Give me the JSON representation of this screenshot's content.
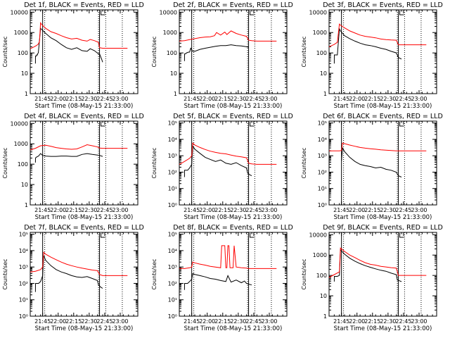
{
  "colors": {
    "events": "#000000",
    "lld": "#ff0000",
    "frame": "#000000",
    "background": "#ffffff"
  },
  "common": {
    "ylabel": "Counts/sec",
    "xlabel": "Start Time (08-May-15 21:33:00)",
    "x_tick_labels": [
      "21:45",
      "22:00",
      "22:15",
      "22:30",
      "22:45",
      "23:00"
    ],
    "x_tick_minutes": [
      12,
      27,
      42,
      57,
      72,
      87
    ],
    "xlim_minutes": [
      0,
      104
    ],
    "vlines_solid_minutes": [
      12,
      67
    ],
    "vlines_dotted_minutes": [
      14,
      66,
      73,
      89
    ]
  },
  "chart_data": [
    {
      "type": "line",
      "title": "Det 1f, BLACK = Events, RED = LLD",
      "yscale": "log",
      "ylim": [
        1,
        13000
      ],
      "ytick_values": [
        1,
        10,
        100,
        1000,
        10000
      ],
      "ytick_labels": [
        "1",
        "10",
        "100",
        "1000",
        "10000"
      ],
      "series": [
        {
          "name": "Events",
          "color": "#000000",
          "x": [
            5,
            5.1,
            6,
            6.1,
            7,
            7.1,
            7.8,
            10,
            15,
            20,
            25,
            30,
            35,
            40,
            45,
            50,
            55,
            58,
            62,
            66,
            67,
            69,
            70
          ],
          "y": [
            30,
            70,
            70,
            80,
            80,
            90,
            100,
            1600,
            900,
            550,
            400,
            260,
            180,
            150,
            180,
            130,
            120,
            160,
            130,
            90,
            90,
            50,
            35
          ]
        },
        {
          "name": "LLD",
          "color": "#ff0000",
          "x": [
            0,
            3,
            6,
            8,
            9,
            10,
            11,
            15,
            20,
            25,
            30,
            35,
            40,
            45,
            50,
            55,
            58,
            62,
            66,
            67,
            70,
            75,
            80,
            85,
            90,
            94
          ],
          "y": [
            160,
            190,
            230,
            280,
            380,
            3000,
            2500,
            1600,
            1100,
            900,
            700,
            560,
            480,
            520,
            420,
            380,
            460,
            400,
            330,
            180,
            170,
            170,
            170,
            170,
            170,
            170
          ]
        }
      ]
    },
    {
      "type": "line",
      "title": "Det 2f, BLACK = Events, RED = LLD",
      "yscale": "log",
      "ylim": [
        1,
        13000
      ],
      "ytick_values": [
        1,
        10,
        100,
        1000,
        10000
      ],
      "ytick_labels": [
        "1",
        "10",
        "100",
        "1000",
        "10000"
      ],
      "series": [
        {
          "name": "Events",
          "color": "#000000",
          "x": [
            5,
            5.1,
            6,
            7,
            9,
            10,
            11,
            13,
            15,
            20,
            25,
            30,
            35,
            40,
            45,
            50,
            55,
            60,
            65,
            67
          ],
          "y": [
            40,
            90,
            90,
            100,
            110,
            110,
            170,
            120,
            120,
            150,
            170,
            190,
            210,
            230,
            230,
            250,
            230,
            220,
            200,
            190
          ]
        },
        {
          "name": "LLD",
          "color": "#ff0000",
          "x": [
            0,
            5,
            10,
            15,
            20,
            25,
            30,
            34,
            36,
            40,
            44,
            46,
            50,
            55,
            60,
            65,
            67,
            70,
            75,
            80,
            85,
            90,
            94
          ],
          "y": [
            380,
            400,
            450,
            500,
            560,
            600,
            620,
            700,
            1000,
            750,
            1050,
            800,
            1200,
            900,
            750,
            650,
            420,
            400,
            380,
            380,
            380,
            380,
            380
          ]
        }
      ]
    },
    {
      "type": "line",
      "title": "Det 3f, BLACK = Events, RED = LLD",
      "yscale": "log",
      "ylim": [
        1,
        13000
      ],
      "ytick_values": [
        1,
        10,
        100,
        1000,
        10000
      ],
      "ytick_labels": [
        "1",
        "10",
        "100",
        "1000",
        "10000"
      ],
      "series": [
        {
          "name": "Events",
          "color": "#000000",
          "x": [
            5,
            5.1,
            6.5,
            8,
            10,
            11,
            15,
            20,
            25,
            30,
            35,
            40,
            45,
            50,
            55,
            60,
            65,
            67,
            70
          ],
          "y": [
            30,
            80,
            80,
            80,
            1500,
            1200,
            700,
            500,
            380,
            300,
            250,
            230,
            200,
            170,
            150,
            120,
            100,
            60,
            50
          ]
        },
        {
          "name": "LLD",
          "color": "#ff0000",
          "x": [
            0,
            5,
            8,
            10,
            11,
            15,
            20,
            25,
            30,
            35,
            40,
            45,
            50,
            55,
            60,
            65,
            67,
            70,
            75,
            80,
            85,
            90,
            94
          ],
          "y": [
            200,
            260,
            330,
            2600,
            2300,
            1700,
            1200,
            950,
            750,
            650,
            600,
            550,
            480,
            450,
            430,
            420,
            250,
            250,
            250,
            250,
            250,
            250,
            250
          ]
        }
      ]
    },
    {
      "type": "line",
      "title": "Det 4f, BLACK = Events, RED = LLD",
      "yscale": "log",
      "ylim": [
        1,
        13000
      ],
      "ytick_values": [
        1,
        10,
        100,
        1000,
        10000
      ],
      "ytick_labels": [
        "1",
        "10",
        "100",
        "1000",
        "10000"
      ],
      "series": [
        {
          "name": "Events",
          "color": "#000000",
          "x": [
            5,
            5.1,
            6,
            8,
            10,
            12,
            15,
            20,
            25,
            30,
            35,
            40,
            45,
            50,
            55,
            60,
            65,
            67,
            70
          ],
          "y": [
            120,
            200,
            220,
            250,
            330,
            270,
            250,
            240,
            240,
            250,
            250,
            240,
            240,
            300,
            330,
            300,
            280,
            270,
            240
          ]
        },
        {
          "name": "LLD",
          "color": "#ff0000",
          "x": [
            0,
            5,
            10,
            15,
            20,
            25,
            30,
            35,
            40,
            45,
            50,
            55,
            60,
            65,
            67,
            70,
            75,
            80,
            85,
            90,
            94
          ],
          "y": [
            500,
            600,
            800,
            850,
            750,
            650,
            600,
            560,
            540,
            560,
            700,
            900,
            800,
            700,
            620,
            600,
            600,
            600,
            600,
            600,
            600
          ]
        }
      ]
    },
    {
      "type": "line",
      "title": "Det 5f, BLACK = Events, RED = LLD",
      "yscale": "log",
      "ylim": [
        1,
        130000
      ],
      "ytick_values": [
        1,
        10,
        100,
        1000,
        10000,
        100000
      ],
      "ytick_labels": [
        "10⁰",
        "10¹",
        "10²",
        "10³",
        "10⁴",
        "10⁵"
      ],
      "series": [
        {
          "name": "Events",
          "color": "#000000",
          "x": [
            5,
            5.1,
            8,
            10,
            12,
            13,
            15,
            20,
            25,
            30,
            35,
            40,
            45,
            50,
            55,
            60,
            65,
            66,
            68,
            70
          ],
          "y": [
            50,
            130,
            130,
            180,
            300,
            4000,
            2500,
            1400,
            800,
            600,
            450,
            550,
            350,
            300,
            380,
            250,
            180,
            90,
            70,
            60
          ]
        },
        {
          "name": "LLD",
          "color": "#ff0000",
          "x": [
            0,
            5,
            10,
            12,
            13,
            15,
            20,
            25,
            30,
            35,
            40,
            45,
            50,
            55,
            60,
            65,
            67,
            70,
            75,
            80,
            85,
            90,
            94
          ],
          "y": [
            300,
            450,
            700,
            1000,
            6000,
            4500,
            3200,
            2400,
            1900,
            1600,
            1400,
            1300,
            1100,
            950,
            850,
            750,
            350,
            320,
            300,
            300,
            300,
            300,
            300
          ]
        }
      ]
    },
    {
      "type": "line",
      "title": "Det 6f, BLACK = Events, RED = LLD",
      "yscale": "log",
      "ylim": [
        1,
        130000
      ],
      "ytick_values": [
        1,
        10,
        100,
        1000,
        10000,
        100000
      ],
      "ytick_labels": [
        "10⁰",
        "10¹",
        "10²",
        "10³",
        "10⁴",
        "10⁵"
      ],
      "series": [
        {
          "name": "Events",
          "color": "#000000",
          "x": [
            12,
            13,
            15,
            20,
            25,
            30,
            35,
            40,
            45,
            50,
            55,
            60,
            65,
            67,
            70
          ],
          "y": [
            500,
            3000,
            1800,
            800,
            450,
            300,
            250,
            220,
            180,
            200,
            150,
            130,
            100,
            60,
            50
          ]
        },
        {
          "name": "LLD",
          "color": "#ff0000",
          "x": [
            0,
            5,
            10,
            12,
            13,
            15,
            20,
            25,
            30,
            35,
            40,
            45,
            50,
            55,
            60,
            65,
            67,
            70,
            75,
            80,
            85,
            90,
            94
          ],
          "y": [
            2000,
            2000,
            2000,
            2100,
            6000,
            5500,
            4500,
            3800,
            3200,
            2900,
            2700,
            2500,
            2300,
            2200,
            2100,
            2000,
            2000,
            2000,
            2000,
            2000,
            2000,
            2000,
            2000
          ]
        }
      ]
    },
    {
      "type": "line",
      "title": "Det 7f, BLACK = Events, RED = LLD",
      "yscale": "log",
      "ylim": [
        1,
        130000
      ],
      "ytick_values": [
        1,
        10,
        100,
        1000,
        10000,
        100000
      ],
      "ytick_labels": [
        "10⁰",
        "10¹",
        "10²",
        "10³",
        "10⁴",
        "10⁵"
      ],
      "series": [
        {
          "name": "Events",
          "color": "#000000",
          "x": [
            5,
            5.1,
            8,
            10,
            12,
            13,
            15,
            20,
            25,
            30,
            35,
            40,
            45,
            50,
            55,
            60,
            65,
            66,
            68,
            70
          ],
          "y": [
            30,
            100,
            100,
            130,
            300,
            5000,
            2500,
            1200,
            700,
            500,
            400,
            300,
            250,
            230,
            260,
            200,
            150,
            80,
            60,
            50
          ]
        },
        {
          "name": "LLD",
          "color": "#ff0000",
          "x": [
            0,
            5,
            10,
            12,
            13,
            15,
            20,
            25,
            30,
            35,
            40,
            45,
            50,
            55,
            60,
            65,
            67,
            70,
            75,
            80,
            85,
            90,
            94
          ],
          "y": [
            500,
            550,
            700,
            1000,
            8000,
            6000,
            4000,
            2800,
            2000,
            1500,
            1200,
            1000,
            850,
            750,
            650,
            600,
            350,
            300,
            300,
            300,
            300,
            300,
            300
          ]
        }
      ]
    },
    {
      "type": "line",
      "title": "Det 8f, BLACK = Events, RED = LLD",
      "yscale": "log",
      "ylim": [
        1,
        130000
      ],
      "ytick_values": [
        1,
        10,
        100,
        1000,
        10000,
        100000
      ],
      "ytick_labels": [
        "10⁰",
        "10¹",
        "10²",
        "10³",
        "10⁴",
        "10⁵"
      ],
      "series": [
        {
          "name": "Events",
          "color": "#000000",
          "x": [
            5,
            5.1,
            8,
            10,
            12,
            13,
            15,
            20,
            25,
            30,
            35,
            40,
            45,
            47,
            50,
            55,
            60,
            63,
            65,
            67,
            70
          ],
          "y": [
            40,
            100,
            100,
            130,
            180,
            400,
            350,
            300,
            250,
            200,
            180,
            150,
            130,
            300,
            120,
            160,
            110,
            140,
            100,
            90,
            80
          ]
        },
        {
          "name": "LLD",
          "color": "#ff0000",
          "x": [
            0,
            5,
            10,
            12,
            13,
            15,
            20,
            25,
            30,
            40,
            41,
            44,
            45,
            46,
            47,
            48,
            49,
            52,
            53,
            55,
            60,
            65,
            67,
            70,
            75,
            80,
            85,
            90,
            94
          ],
          "y": [
            800,
            800,
            900,
            1000,
            2000,
            1800,
            1500,
            1300,
            1100,
            900,
            20000,
            20000,
            900,
            900,
            20000,
            20000,
            900,
            900,
            20000,
            1000,
            900,
            850,
            800,
            800,
            800,
            800,
            800,
            800,
            800
          ]
        }
      ]
    },
    {
      "type": "line",
      "title": "Det 9f, BLACK = Events, RED = LLD",
      "yscale": "log",
      "ylim": [
        1,
        13000
      ],
      "ytick_values": [
        1,
        10,
        100,
        1000,
        10000
      ],
      "ytick_labels": [
        "1",
        "10",
        "100",
        "1000",
        "10000"
      ],
      "series": [
        {
          "name": "Events",
          "color": "#000000",
          "x": [
            5,
            5.1,
            8,
            10,
            11,
            15,
            20,
            25,
            30,
            35,
            40,
            45,
            50,
            55,
            60,
            65,
            66,
            68,
            70
          ],
          "y": [
            50,
            90,
            90,
            100,
            1800,
            1100,
            700,
            500,
            380,
            300,
            250,
            210,
            180,
            160,
            130,
            110,
            60,
            55,
            50
          ]
        },
        {
          "name": "LLD",
          "color": "#ff0000",
          "x": [
            0,
            5,
            10,
            11,
            15,
            20,
            25,
            30,
            35,
            40,
            45,
            50,
            55,
            60,
            65,
            67,
            70,
            75,
            80,
            85,
            90,
            94
          ],
          "y": [
            80,
            110,
            150,
            2200,
            1500,
            1000,
            750,
            550,
            420,
            350,
            320,
            280,
            260,
            240,
            230,
            100,
            100,
            100,
            100,
            100,
            100,
            100
          ]
        }
      ]
    }
  ]
}
